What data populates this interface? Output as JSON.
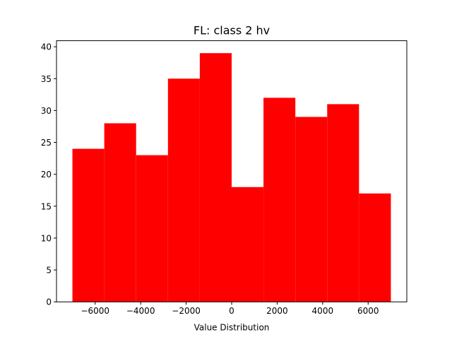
{
  "chart_data": {
    "type": "bar",
    "title": "FL: class 2 hv",
    "xlabel": "Value Distribution",
    "ylabel": "",
    "bar_color": "#ff0000",
    "bins": [
      {
        "x0": -7000,
        "x1": -5600,
        "count": 24
      },
      {
        "x0": -5600,
        "x1": -4200,
        "count": 28
      },
      {
        "x0": -4200,
        "x1": -2800,
        "count": 23
      },
      {
        "x0": -2800,
        "x1": -1400,
        "count": 35
      },
      {
        "x0": -1400,
        "x1": 0,
        "count": 39
      },
      {
        "x0": 0,
        "x1": 1400,
        "count": 18
      },
      {
        "x0": 1400,
        "x1": 2800,
        "count": 32
      },
      {
        "x0": 2800,
        "x1": 4200,
        "count": 29
      },
      {
        "x0": 4200,
        "x1": 5600,
        "count": 31
      },
      {
        "x0": 5600,
        "x1": 7000,
        "count": 17
      }
    ],
    "xlim": [
      -7700,
      7700
    ],
    "ylim": [
      0,
      40.95
    ],
    "xticks": [
      -6000,
      -4000,
      -2000,
      0,
      2000,
      4000,
      6000
    ],
    "xtick_labels": [
      "−6000",
      "−4000",
      "−2000",
      "0",
      "2000",
      "4000",
      "6000"
    ],
    "yticks": [
      0,
      5,
      10,
      15,
      20,
      25,
      30,
      35,
      40
    ],
    "ytick_labels": [
      "0",
      "5",
      "10",
      "15",
      "20",
      "25",
      "30",
      "35",
      "40"
    ],
    "grid": false,
    "legend": "none"
  }
}
